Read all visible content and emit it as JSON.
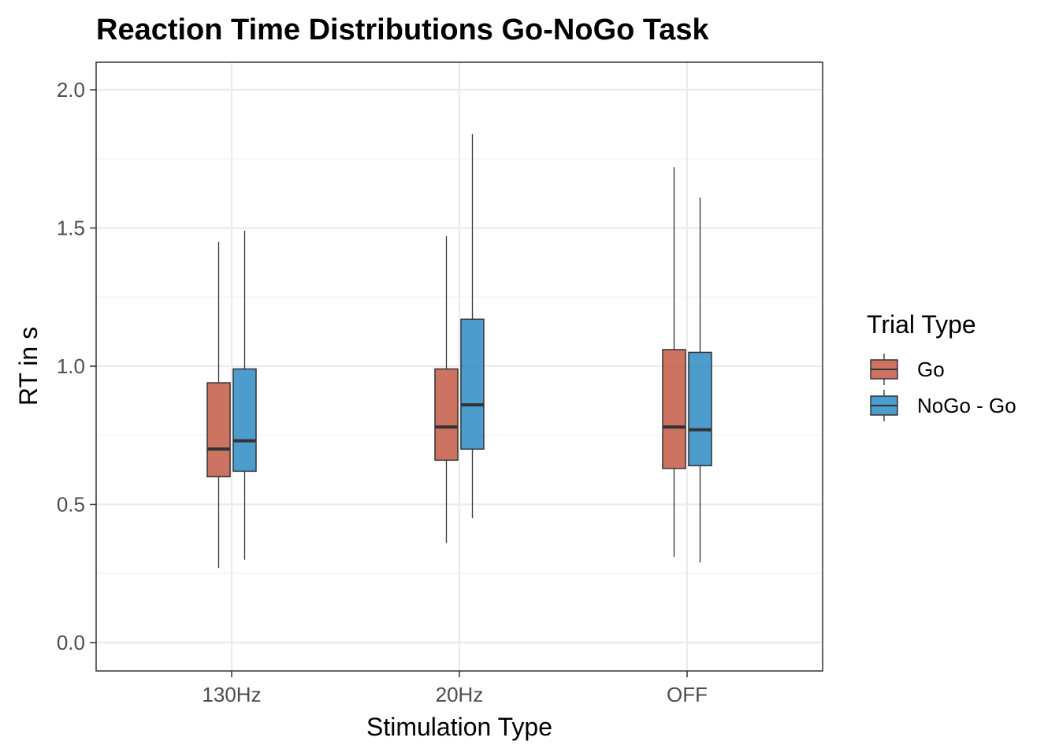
{
  "chart_data": {
    "type": "boxplot",
    "title": "Reaction Time Distributions Go-NoGo Task",
    "xlabel": "Stimulation Type",
    "ylabel": "RT in s",
    "categories": [
      "130Hz",
      "20Hz",
      "OFF"
    ],
    "ylim": [
      -0.09,
      2.1
    ],
    "y_ticks": [
      0.0,
      0.5,
      1.0,
      1.5,
      2.0
    ],
    "y_tick_labels": [
      "0.0",
      "0.5",
      "1.0",
      "1.5",
      "2.0"
    ],
    "grid": true,
    "legend": {
      "title": "Trial Type",
      "placement": "right"
    },
    "series": [
      {
        "name": "Go",
        "color": "#c0503b",
        "boxes": [
          {
            "category": "130Hz",
            "whisker_low": 0.27,
            "q1": 0.6,
            "median": 0.7,
            "q3": 0.94,
            "whisker_high": 1.45
          },
          {
            "category": "20Hz",
            "whisker_low": 0.36,
            "q1": 0.66,
            "median": 0.78,
            "q3": 0.99,
            "whisker_high": 1.47
          },
          {
            "category": "OFF",
            "whisker_low": 0.31,
            "q1": 0.63,
            "median": 0.78,
            "q3": 1.06,
            "whisker_high": 1.72
          }
        ]
      },
      {
        "name": "NoGo - Go",
        "color": "#1f83c0",
        "boxes": [
          {
            "category": "130Hz",
            "whisker_low": 0.3,
            "q1": 0.62,
            "median": 0.73,
            "q3": 0.99,
            "whisker_high": 1.49
          },
          {
            "category": "20Hz",
            "whisker_low": 0.45,
            "q1": 0.7,
            "median": 0.86,
            "q3": 1.17,
            "whisker_high": 1.84
          },
          {
            "category": "OFF",
            "whisker_low": 0.29,
            "q1": 0.64,
            "median": 0.77,
            "q3": 1.05,
            "whisker_high": 1.61
          }
        ]
      }
    ]
  }
}
